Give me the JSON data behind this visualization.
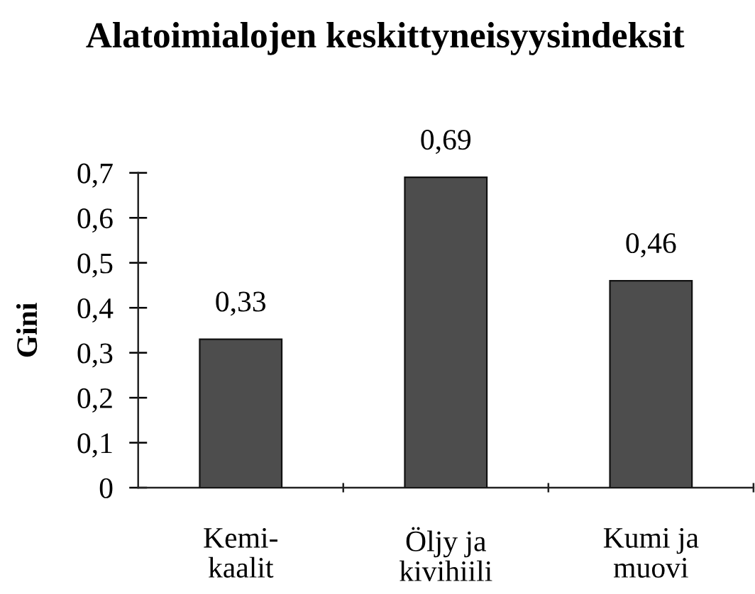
{
  "chart_data": {
    "type": "bar",
    "title": "Alatoimialojen keskittyneisyysindeksit",
    "ylabel": "Gini",
    "categories": [
      "Kemi-\nkaalit",
      "Öljy ja\nkivihiili",
      "Kumi ja\nmuovi"
    ],
    "values": [
      0.33,
      0.69,
      0.46
    ],
    "color": "#4d4d4d",
    "value_labels": [
      "0,33",
      "0,69",
      "0,46"
    ],
    "ylim": [
      0,
      0.7
    ],
    "yticks": [
      0,
      {
        "value": 0.1,
        "label": "0,1"
      },
      {
        "value": 0.2,
        "label": "0,2"
      },
      {
        "value": 0.3,
        "label": "0,3"
      },
      {
        "value": 0.4,
        "label": "0,4"
      },
      {
        "value": 0.5,
        "label": "0,5"
      },
      {
        "value": 0.6,
        "label": "0,6"
      },
      {
        "value": 0.7,
        "label": "0,7"
      }
    ],
    "grid": false,
    "legend": false
  }
}
